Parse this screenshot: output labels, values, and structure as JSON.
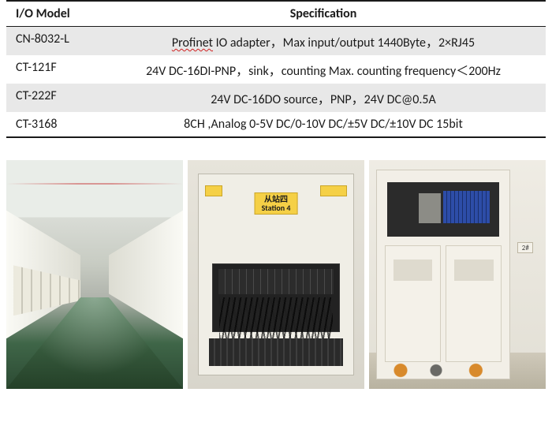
{
  "table": {
    "headers": {
      "model": "I/O Model",
      "spec": "Specification"
    },
    "rows": [
      {
        "model": "CN-8032-L",
        "spec_prefix": "Profinet",
        "spec_rest": " IO adapter，Max input/output 1440Byte，2×RJ45",
        "shaded": true
      },
      {
        "model": "CT-121F",
        "spec": "24V DC-16DI-PNP，sink，counting Max. counting frequency＜200Hz",
        "shaded": false
      },
      {
        "model": "CT-222F",
        "spec": "24V DC-16DO source，PNP，24V DC@0.5A",
        "shaded": true
      },
      {
        "model": "CT-3168",
        "spec": "8CH ,Analog 0-5V DC/0-10V DC/±5V DC/±10V DC 15bit",
        "shaded": false
      }
    ]
  },
  "photo2": {
    "label_top": "从站四",
    "label_bottom": "Station 4"
  },
  "photo3": {
    "tag": "2#"
  }
}
